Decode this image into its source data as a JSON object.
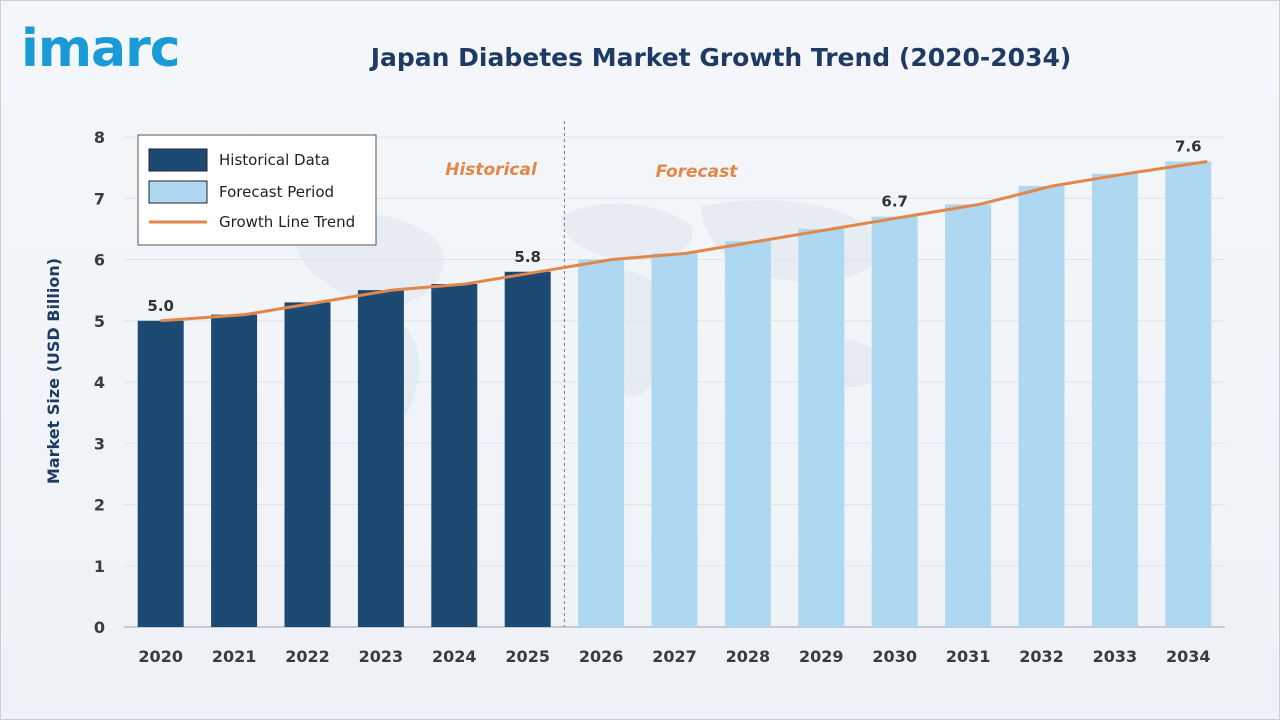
{
  "logo_text": "imarc",
  "colors": {
    "historical": "#1d4a72",
    "forecast": "#aed8f1",
    "trend": "#e2874a",
    "title": "#1f3b63",
    "axis_text": "#3b3b3b",
    "logo": "#1a9ad6"
  },
  "chart_data": {
    "type": "bar",
    "title": "Japan Diabetes Market Growth Trend (2020-2034)",
    "ylabel": "Market Size (USD Billion)",
    "xlabel": "",
    "ylim": [
      0,
      8
    ],
    "yticks": [
      "0",
      "1",
      "2",
      "3",
      "4",
      "5",
      "6",
      "7",
      "8"
    ],
    "categories": [
      "2020",
      "2021",
      "2022",
      "2023",
      "2024",
      "2025",
      "2026",
      "2027",
      "2028",
      "2029",
      "2030",
      "2031",
      "2032",
      "2033",
      "2034"
    ],
    "series": [
      {
        "name": "Historical Data",
        "values": [
          5.0,
          5.1,
          5.3,
          5.5,
          5.6,
          5.8,
          null,
          null,
          null,
          null,
          null,
          null,
          null,
          null,
          null
        ]
      },
      {
        "name": "Forecast Period",
        "values": [
          null,
          null,
          null,
          null,
          null,
          null,
          6.0,
          6.1,
          6.3,
          6.5,
          6.7,
          6.9,
          7.2,
          7.4,
          7.6
        ]
      }
    ],
    "trend": {
      "name": "Growth Line Trend",
      "values": [
        5.0,
        5.1,
        5.3,
        5.5,
        5.6,
        5.8,
        6.0,
        6.1,
        6.3,
        6.5,
        6.7,
        6.9,
        7.2,
        7.4,
        7.6
      ]
    },
    "data_labels": [
      {
        "category": "2020",
        "text": "5.0"
      },
      {
        "category": "2025",
        "text": "5.8"
      },
      {
        "category": "2030",
        "text": "6.7"
      },
      {
        "category": "2034",
        "text": "7.6"
      }
    ],
    "section_labels": {
      "historical": "Historical",
      "forecast": "Forecast"
    },
    "legend": {
      "placement": "top-left",
      "items": [
        {
          "label": "Historical Data",
          "kind": "box",
          "color_key": "historical"
        },
        {
          "label": "Forecast Period",
          "kind": "box",
          "color_key": "forecast"
        },
        {
          "label": "Growth Line Trend",
          "kind": "line",
          "color_key": "trend"
        }
      ]
    },
    "grid": true
  }
}
